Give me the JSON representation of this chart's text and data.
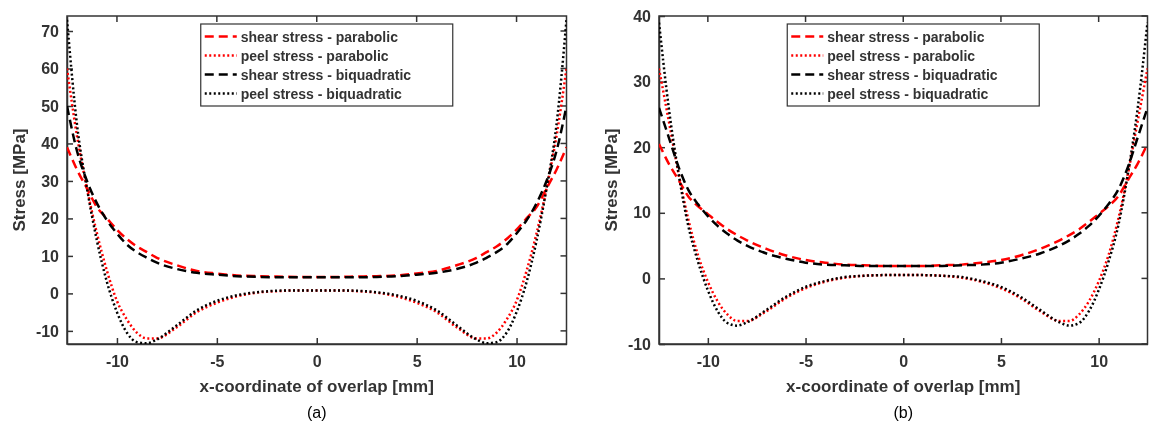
{
  "chart_data": [
    {
      "type": "line",
      "xlabel": "x-coordinate of overlap [mm]",
      "ylabel": "Stress [MPa]",
      "annotations": [
        "(a)"
      ],
      "x": [
        -12.5,
        -12,
        -11.5,
        -11,
        -10.5,
        -10,
        -9.5,
        -9,
        -8.5,
        -8,
        -7,
        -6,
        -5,
        -4,
        -3,
        -2,
        -1,
        0,
        1,
        2,
        3,
        4,
        5,
        6,
        7,
        8,
        8.5,
        9,
        9.5,
        10,
        10.5,
        11,
        11.5,
        12,
        12.5
      ],
      "xlim": [
        -12.5,
        12.5
      ],
      "xticks": [
        -10,
        -5,
        0,
        5,
        10
      ],
      "ylim": [
        -13.5,
        74
      ],
      "yticks": [
        -10,
        0,
        10,
        20,
        30,
        40,
        50,
        60,
        70
      ],
      "grid": false,
      "legend": "top",
      "marker": "none",
      "series": [
        {
          "name": "shear stress - parabolic",
          "color": "#ff0000",
          "line_style": "dashed",
          "values": [
            39,
            33,
            28,
            23,
            20,
            17,
            14.5,
            12.5,
            11,
            9.5,
            7.5,
            6,
            5.3,
            4.8,
            4.6,
            4.5,
            4.4,
            4.4,
            4.4,
            4.5,
            4.6,
            4.8,
            5.3,
            6,
            7.5,
            9.5,
            11,
            12.5,
            14.5,
            17,
            20,
            23,
            28,
            33,
            39
          ]
        },
        {
          "name": "peel stress - parabolic",
          "color": "#ff0000",
          "line_style": "dotted",
          "values": [
            60,
            42,
            28,
            16,
            6,
            -2,
            -7,
            -10.5,
            -12,
            -12,
            -9,
            -5,
            -2.5,
            -0.8,
            0.2,
            0.6,
            0.8,
            0.8,
            0.8,
            0.6,
            0.2,
            -0.8,
            -2.5,
            -5,
            -9,
            -12,
            -12,
            -10.5,
            -7,
            -2,
            6,
            16,
            28,
            42,
            60
          ]
        },
        {
          "name": "shear stress - biquadratic",
          "color": "#000000",
          "line_style": "dashed",
          "values": [
            50,
            38,
            30,
            24,
            19.5,
            16,
            13,
            11,
            9.5,
            8.2,
            6.5,
            5.5,
            5,
            4.6,
            4.4,
            4.3,
            4.3,
            4.3,
            4.3,
            4.3,
            4.4,
            4.6,
            5,
            5.5,
            6.5,
            8.2,
            9.5,
            11,
            13,
            16,
            19.5,
            24,
            30,
            38,
            50
          ]
        },
        {
          "name": "peel stress - biquadratic",
          "color": "#000000",
          "line_style": "dotted",
          "values": [
            73,
            45,
            28,
            14,
            3,
            -5,
            -10.5,
            -13,
            -13.3,
            -12.3,
            -8.5,
            -4.5,
            -2,
            -0.5,
            0.3,
            0.7,
            0.8,
            0.8,
            0.8,
            0.7,
            0.3,
            -0.5,
            -2,
            -4.5,
            -8.5,
            -12.3,
            -13.3,
            -13,
            -10.5,
            -5,
            3,
            14,
            28,
            45,
            73
          ]
        }
      ]
    },
    {
      "type": "line",
      "xlabel": "x-coordinate of overlap [mm]",
      "ylabel": "Stress [MPa]",
      "annotations": [
        "(b)"
      ],
      "x": [
        -12.5,
        -12,
        -11.5,
        -11,
        -10.5,
        -10,
        -9.5,
        -9,
        -8.5,
        -8,
        -7,
        -6,
        -5,
        -4,
        -3,
        -2,
        -1,
        0,
        1,
        2,
        3,
        4,
        5,
        6,
        7,
        8,
        8.5,
        9,
        9.5,
        10,
        10.5,
        11,
        11.5,
        12,
        12.5
      ],
      "xlim": [
        -12.5,
        12.5
      ],
      "xticks": [
        -10,
        -5,
        0,
        5,
        10
      ],
      "ylim": [
        -10,
        40
      ],
      "yticks": [
        -10,
        0,
        10,
        20,
        30,
        40
      ],
      "grid": false,
      "legend": "top",
      "marker": "none",
      "series": [
        {
          "name": "shear stress - parabolic",
          "color": "#ff0000",
          "line_style": "dashed",
          "values": [
            20.5,
            17.5,
            15,
            12.5,
            11,
            9.8,
            8.6,
            7.5,
            6.6,
            5.8,
            4.5,
            3.5,
            2.8,
            2.4,
            2.1,
            2,
            1.9,
            1.9,
            1.9,
            2,
            2.1,
            2.4,
            2.8,
            3.5,
            4.5,
            5.8,
            6.6,
            7.5,
            8.6,
            9.8,
            11,
            12.5,
            15,
            17.5,
            20.5
          ]
        },
        {
          "name": "peel stress - parabolic",
          "color": "#ff0000",
          "line_style": "dotted",
          "values": [
            32,
            24,
            16,
            9,
            3.5,
            -0.5,
            -3.5,
            -5.5,
            -6.5,
            -6.5,
            -5,
            -3,
            -1.5,
            -0.5,
            0.1,
            0.4,
            0.5,
            0.5,
            0.5,
            0.4,
            0.1,
            -0.5,
            -1.5,
            -3,
            -5,
            -6.5,
            -6.5,
            -5.5,
            -3.5,
            -0.5,
            3.5,
            9,
            16,
            24,
            32
          ]
        },
        {
          "name": "shear stress - biquadratic",
          "color": "#000000",
          "line_style": "dashed",
          "values": [
            26,
            21.5,
            17,
            13.5,
            11.3,
            9.5,
            8,
            6.8,
            5.8,
            5,
            3.8,
            3,
            2.4,
            2.1,
            2,
            1.9,
            1.9,
            1.9,
            1.9,
            1.9,
            2,
            2.1,
            2.4,
            3,
            3.8,
            5,
            5.8,
            6.8,
            8,
            9.5,
            11.3,
            13.5,
            17,
            21.5,
            26
          ]
        },
        {
          "name": "peel stress - biquadratic",
          "color": "#000000",
          "line_style": "dotted",
          "values": [
            39,
            26,
            16,
            8,
            2.5,
            -1.8,
            -5,
            -6.8,
            -7.2,
            -6.7,
            -4.8,
            -2.8,
            -1.3,
            -0.4,
            0.2,
            0.4,
            0.5,
            0.5,
            0.5,
            0.4,
            0.2,
            -0.4,
            -1.3,
            -2.8,
            -4.8,
            -6.7,
            -7.2,
            -6.8,
            -5,
            -1.8,
            2.5,
            8,
            16,
            26,
            39
          ]
        }
      ]
    }
  ]
}
